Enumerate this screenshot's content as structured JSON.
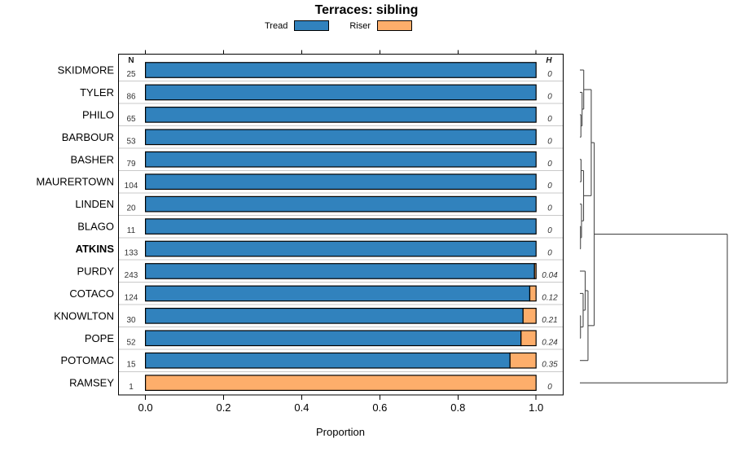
{
  "chart_data": {
    "type": "bar",
    "orientation": "horizontal",
    "stacked": true,
    "title": "Terraces: sibling",
    "xlabel": "Proportion",
    "xlim": [
      0.0,
      1.0
    ],
    "xticks": [
      "0.0",
      "0.2",
      "0.4",
      "0.6",
      "0.8",
      "1.0"
    ],
    "legend": [
      {
        "label": "Tread",
        "color_key": "tread"
      },
      {
        "label": "Riser",
        "color_key": "riser"
      }
    ],
    "col_n_header": "N",
    "col_h_header": "H",
    "highlight_row": "ATKINS",
    "rows": [
      {
        "name": "SKIDMORE",
        "n": 25,
        "h": "0",
        "tread": 1.0,
        "riser": 0.0
      },
      {
        "name": "TYLER",
        "n": 86,
        "h": "0",
        "tread": 1.0,
        "riser": 0.0
      },
      {
        "name": "PHILO",
        "n": 65,
        "h": "0",
        "tread": 1.0,
        "riser": 0.0
      },
      {
        "name": "BARBOUR",
        "n": 53,
        "h": "0",
        "tread": 1.0,
        "riser": 0.0
      },
      {
        "name": "BASHER",
        "n": 79,
        "h": "0",
        "tread": 1.0,
        "riser": 0.0
      },
      {
        "name": "MAURERTOWN",
        "n": 104,
        "h": "0",
        "tread": 1.0,
        "riser": 0.0
      },
      {
        "name": "LINDEN",
        "n": 20,
        "h": "0",
        "tread": 1.0,
        "riser": 0.0
      },
      {
        "name": "BLAGO",
        "n": 11,
        "h": "0",
        "tread": 1.0,
        "riser": 0.0
      },
      {
        "name": "ATKINS",
        "n": 133,
        "h": "0",
        "tread": 1.0,
        "riser": 0.0
      },
      {
        "name": "PURDY",
        "n": 243,
        "h": "0.04",
        "tread": 0.9959,
        "riser": 0.0041
      },
      {
        "name": "COTACO",
        "n": 124,
        "h": "0.12",
        "tread": 0.9839,
        "riser": 0.0161
      },
      {
        "name": "KNOWLTON",
        "n": 30,
        "h": "0.21",
        "tread": 0.9667,
        "riser": 0.0333
      },
      {
        "name": "POPE",
        "n": 52,
        "h": "0.24",
        "tread": 0.9615,
        "riser": 0.0385
      },
      {
        "name": "POTOMAC",
        "n": 15,
        "h": "0.35",
        "tread": 0.9333,
        "riser": 0.0667
      },
      {
        "name": "RAMSEY",
        "n": 1,
        "h": "0",
        "tread": 0.0,
        "riser": 1.0
      }
    ],
    "colors": {
      "tread": "#3182BD",
      "riser": "#FDAE6B",
      "bar_border": "#000000",
      "separator": "#C9C9C9",
      "dendrogram": "#4A4A4A",
      "value_text": "#333333"
    },
    "dendrogram": {
      "h": 1.0,
      "c": [
        {
          "h": 0.097,
          "c": [
            {
              "h": 0.077,
              "c": [
                {
                  "h": 0.026,
                  "c": [
                    {
                      "leaf": "SKIDMORE"
                    },
                    {
                      "h": 0.015,
                      "c": [
                        {
                          "leaf": "TYLER"
                        },
                        {
                          "h": 0.007,
                          "c": [
                            {
                              "leaf": "PHILO"
                            },
                            {
                              "leaf": "BARBOUR"
                            }
                          ]
                        }
                      ]
                    }
                  ]
                },
                {
                  "h": 0.025,
                  "c": [
                    {
                      "h": 0.008,
                      "c": [
                        {
                          "leaf": "BASHER"
                        },
                        {
                          "leaf": "MAURERTOWN"
                        }
                      ]
                    },
                    {
                      "h": 0.011,
                      "c": [
                        {
                          "leaf": "LINDEN"
                        },
                        {
                          "h": 0.004,
                          "c": [
                            {
                              "leaf": "BLAGO"
                            },
                            {
                              "leaf": "ATKINS"
                            }
                          ]
                        }
                      ]
                    }
                  ]
                }
              ]
            },
            {
              "h": 0.055,
              "c": [
                {
                  "h": 0.036,
                  "c": [
                    {
                      "leaf": "PURDY"
                    },
                    {
                      "h": 0.022,
                      "c": [
                        {
                          "leaf": "COTACO"
                        },
                        {
                          "h": 0.004,
                          "c": [
                            {
                              "leaf": "KNOWLTON"
                            },
                            {
                              "leaf": "POPE"
                            }
                          ]
                        }
                      ]
                    }
                  ]
                },
                {
                  "leaf": "POTOMAC"
                }
              ]
            }
          ]
        },
        {
          "leaf": "RAMSEY"
        }
      ]
    }
  }
}
